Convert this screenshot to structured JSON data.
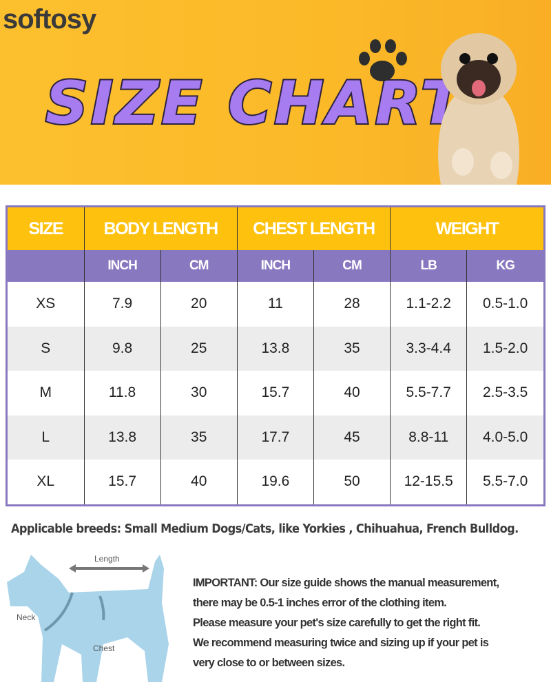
{
  "brand": "softosy",
  "title": "SIZE CHART",
  "colors": {
    "header_yellow": "#fdc10e",
    "subheader_purple": "#8878c0",
    "title_purple": "#a77cf0",
    "background_yellow": "#fbb928",
    "dog_diagram_blue": "#a9d4ea"
  },
  "table": {
    "groups": [
      "SIZE",
      "BODY LENGTH",
      "CHEST LENGTH",
      "WEIGHT"
    ],
    "units": [
      "INCH",
      "CM",
      "INCH",
      "CM",
      "LB",
      "KG"
    ],
    "rows": [
      [
        "XS",
        "7.9",
        "20",
        "11",
        "28",
        "1.1-2.2",
        "0.5-1.0"
      ],
      [
        "S",
        "9.8",
        "25",
        "13.8",
        "35",
        "3.3-4.4",
        "1.5-2.0"
      ],
      [
        "M",
        "11.8",
        "30",
        "15.7",
        "40",
        "5.5-7.7",
        "2.5-3.5"
      ],
      [
        "L",
        "13.8",
        "35",
        "17.7",
        "45",
        "8.8-11",
        "4.0-5.0"
      ],
      [
        "XL",
        "15.7",
        "40",
        "19.6",
        "50",
        "12-15.5",
        "5.5-7.0"
      ]
    ]
  },
  "breeds": "Applicable breeds: Small Medium Dogs/Cats, like Yorkies , Chihuahua, French Bulldog.",
  "diagram": {
    "length": "Length",
    "neck": "Neck",
    "chest": "Chest"
  },
  "important": [
    "IMPORTANT: Our size guide shows the manual measurement,",
    "there may be 0.5-1 inches error of the clothing item.",
    "Please measure your pet's size carefully to get the right fit.",
    "We recommend measuring twice and sizing up if your pet is",
    "very close to or between sizes."
  ]
}
